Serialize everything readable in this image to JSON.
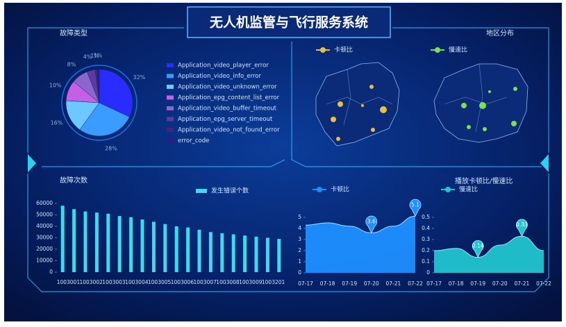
{
  "title": "无人机监管与飞行服务系统",
  "chart_data": [
    {
      "type": "pie",
      "title": "故障类型",
      "categories": [
        "Application_video_player_error",
        "Application_video_info_error",
        "Application_video_unknown_error",
        "Application_epg_content_list_error",
        "Application_video_buffer_timeout",
        "Application_epg_server_timeout",
        "Application_video_not_found_error",
        "error_code"
      ],
      "values": [
        32,
        28,
        16,
        10,
        8,
        4,
        1,
        1
      ],
      "value_labels": [
        "32%",
        "28%",
        "16%",
        "10%",
        "8%",
        "4%",
        "1%",
        "1%"
      ],
      "colors": [
        "#2a2cff",
        "#3a9cff",
        "#6cc8ff",
        "#c45fe6",
        "#8b66cc",
        "#5e3aa0",
        "#44257e",
        "#2c1c88"
      ]
    },
    {
      "type": "bar",
      "title": "故障次数",
      "categories": [
        "1003001",
        null,
        "1003002",
        null,
        "1003003",
        null,
        "1003004",
        null,
        "1003005",
        null,
        "1003006",
        null,
        "1003007",
        null,
        "1003008",
        null,
        "1003009",
        null,
        "1003201",
        null
      ],
      "series": [
        {
          "name": "发生错误个数",
          "color": "#3fd8ec",
          "values": [
            58000,
            55000,
            53000,
            52000,
            51000,
            49000,
            48000,
            46000,
            44000,
            42000,
            40000,
            39000,
            37000,
            35000,
            34000,
            33000,
            32000,
            31000,
            30000,
            29000
          ]
        }
      ],
      "ylim": [
        0,
        60000
      ],
      "yticks": [
        0,
        10000,
        20000,
        30000,
        40000,
        50000,
        60000
      ]
    },
    {
      "type": "area",
      "x": [
        "07-17",
        "07-18",
        "07-19",
        "07-20",
        "07-21",
        "07-22"
      ],
      "series": [
        {
          "name": "卡顿比",
          "color": "#1e8fff",
          "values": [
            4.3,
            4.5,
            4.2,
            3.6,
            4.2,
            5.1
          ],
          "value_labels": [
            null,
            null,
            null,
            "3.6",
            null,
            "5.1"
          ]
        }
      ],
      "ylim": [
        0,
        5
      ],
      "yticks": [
        0,
        1,
        2,
        3,
        4,
        5
      ]
    },
    {
      "type": "area",
      "title": "播放卡顿比/慢速比",
      "x": [
        "07-17",
        "07-18",
        "07-19",
        "07-20",
        "07-21",
        "07-22"
      ],
      "series": [
        {
          "name": "慢速比",
          "color": "#22c4d0",
          "values": [
            0.2,
            0.22,
            0.14,
            0.25,
            0.33,
            0.2
          ],
          "value_labels": [
            null,
            null,
            "0.14",
            null,
            "0.33",
            null
          ]
        }
      ],
      "ylim": [
        0,
        0.5
      ],
      "yticks": [
        0,
        0.1,
        0.2,
        0.3,
        0.4,
        0.5
      ]
    }
  ],
  "map": {
    "title": "地区分布",
    "legend": [
      "卡顿比",
      "慢速比"
    ]
  }
}
